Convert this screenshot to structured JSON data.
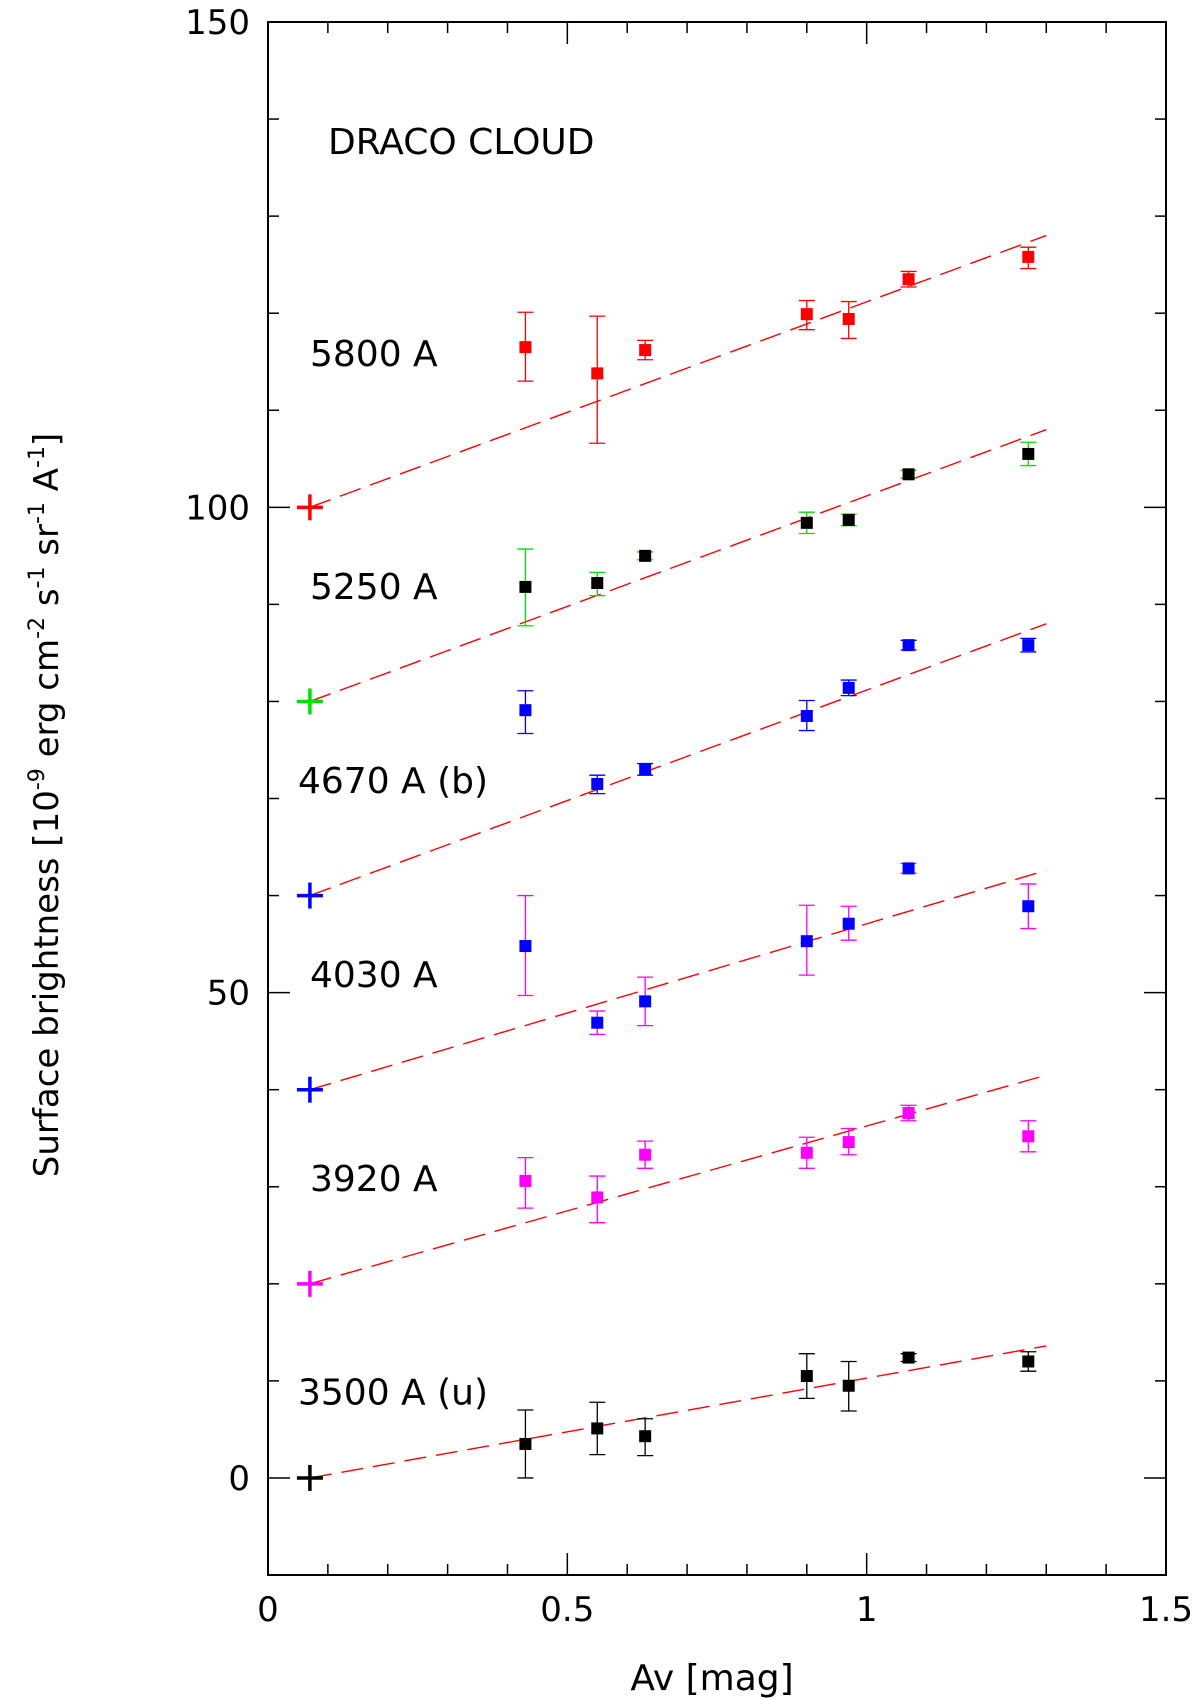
{
  "chart_data": {
    "type": "scatter",
    "title": "DRACO CLOUD",
    "xlabel": "Av [mag]",
    "ylabel": {
      "part1": "Surface brightness [10",
      "exp1": "-9",
      "part2": " erg cm",
      "exp2": "-2",
      "part3": " s",
      "exp3": "-1",
      "part4": " sr",
      "exp4": "-1",
      "part5": " A",
      "exp5": "-1",
      "part6": "]"
    },
    "xlim": [
      0,
      1.5
    ],
    "ylim": [
      -10,
      150
    ],
    "x_ticks": [
      {
        "value": 0,
        "label": "0"
      },
      {
        "value": 0.5,
        "label": "0.5"
      },
      {
        "value": 1,
        "label": "1"
      },
      {
        "value": 1.5,
        "label": "1.5"
      }
    ],
    "y_ticks": [
      {
        "value": 0,
        "label": "0"
      },
      {
        "value": 50,
        "label": "50"
      },
      {
        "value": 100,
        "label": "100"
      },
      {
        "value": 150,
        "label": "150"
      }
    ],
    "series": [
      {
        "name": "5800 A",
        "color": "#ff0000",
        "marker_color": "#ff0000",
        "errorbar_color": "#ff0000",
        "offset": 100,
        "fit": {
          "x0": 0.07,
          "y0": 100,
          "x1": 1.3,
          "y1": 128
        },
        "x": [
          0.43,
          0.55,
          0.63,
          0.9,
          0.97,
          1.07,
          1.27
        ],
        "y": [
          116.5,
          113.8,
          116.2,
          119.9,
          119.4,
          123.5,
          125.8
        ],
        "yerr_low": [
          3.5,
          7.2,
          1.0,
          1.6,
          2.0,
          0.8,
          1.2
        ],
        "yerr_high": [
          3.6,
          5.9,
          1.0,
          1.4,
          1.8,
          0.8,
          1.0
        ]
      },
      {
        "name": "5250 A",
        "color": "#00e000",
        "marker_color": "#000000",
        "errorbar_color": "#00e000",
        "offset": 80,
        "fit": {
          "x0": 0.07,
          "y0": 80,
          "x1": 1.3,
          "y1": 108
        },
        "x": [
          0.43,
          0.55,
          0.63,
          0.9,
          0.97,
          1.07,
          1.27
        ],
        "y": [
          91.8,
          92.2,
          95.0,
          98.4,
          98.7,
          103.4,
          105.5
        ],
        "yerr_low": [
          4.0,
          1.3,
          0.4,
          1.1,
          0.6,
          0.4,
          1.2
        ],
        "yerr_high": [
          3.9,
          1.1,
          0.4,
          1.1,
          0.6,
          0.4,
          1.2
        ]
      },
      {
        "name": "4670 A (b)",
        "color": "#0000ff",
        "marker_color": "#0000ff",
        "errorbar_color": "#0000ff",
        "offset": 60,
        "fit": {
          "x0": 0.07,
          "y0": 60,
          "x1": 1.3,
          "y1": 88
        },
        "x": [
          0.43,
          0.55,
          0.63,
          0.9,
          0.97,
          1.07,
          1.27
        ],
        "y": [
          79.1,
          71.5,
          73.0,
          78.5,
          81.4,
          85.8,
          85.8
        ],
        "yerr_low": [
          2.4,
          1.0,
          0.6,
          1.5,
          0.8,
          0.5,
          0.7
        ],
        "yerr_high": [
          2.0,
          0.9,
          0.6,
          1.6,
          0.8,
          0.5,
          0.7
        ]
      },
      {
        "name": "4030 A",
        "color": "#0000ff",
        "marker_color": "#0000ff",
        "errorbar_color": "#ff00ff",
        "offset": 40,
        "fit": {
          "x0": 0.07,
          "y0": 40,
          "x1": 1.3,
          "y1": 62.6
        },
        "x": [
          0.43,
          0.55,
          0.63,
          0.9,
          0.97,
          1.07,
          1.27
        ],
        "y": [
          54.8,
          46.9,
          49.1,
          55.3,
          57.1,
          62.8,
          58.9
        ],
        "yerr_low": [
          5.1,
          1.2,
          2.5,
          3.5,
          1.7,
          0.5,
          2.3
        ],
        "yerr_high": [
          5.2,
          1.2,
          2.5,
          3.7,
          1.8,
          0.5,
          2.3
        ]
      },
      {
        "name": "3920 A",
        "color": "#ff00ff",
        "marker_color": "#ff00ff",
        "errorbar_color": "#ff00ff",
        "offset": 20,
        "fit": {
          "x0": 0.07,
          "y0": 20,
          "x1": 1.3,
          "y1": 41.5
        },
        "x": [
          0.43,
          0.55,
          0.63,
          0.9,
          0.97,
          1.07,
          1.27
        ],
        "y": [
          30.6,
          28.9,
          33.3,
          33.5,
          34.6,
          37.6,
          35.2
        ],
        "yerr_low": [
          2.8,
          2.6,
          1.4,
          1.6,
          1.3,
          0.8,
          1.6
        ],
        "yerr_high": [
          2.4,
          2.2,
          1.4,
          1.6,
          1.4,
          0.8,
          1.6
        ]
      },
      {
        "name": "3500 A (u)",
        "color": "#000000",
        "marker_color": "#000000",
        "errorbar_color": "#000000",
        "offset": 0,
        "fit": {
          "x0": 0.07,
          "y0": 0,
          "x1": 1.3,
          "y1": 13.6
        },
        "x": [
          0.43,
          0.55,
          0.63,
          0.9,
          0.97,
          1.07,
          1.27
        ],
        "y": [
          3.5,
          5.1,
          4.3,
          10.5,
          9.5,
          12.4,
          12.0
        ],
        "yerr_low": [
          3.5,
          2.7,
          2.0,
          2.3,
          2.6,
          0.4,
          1.0
        ],
        "yerr_high": [
          3.5,
          2.7,
          1.8,
          2.3,
          2.5,
          0.4,
          1.0
        ]
      }
    ]
  }
}
